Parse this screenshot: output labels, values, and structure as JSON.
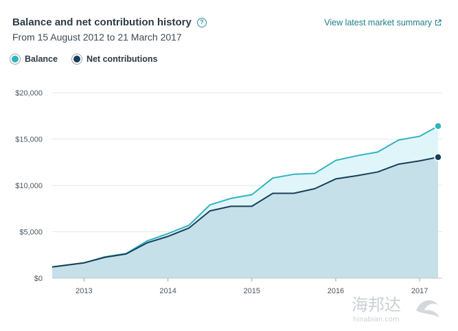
{
  "header": {
    "title": "Balance and net contribution history",
    "subtitle": "From 15 August 2012 to 21 March 2017",
    "summary_link": "View latest market summary"
  },
  "legend": {
    "balance_label": "Balance",
    "net_label": "Net contributions"
  },
  "colors": {
    "balance": "#2fb3bd",
    "net": "#173f58",
    "balance_fill": "#e0f5fa",
    "net_fill": "#c6e0ea",
    "grid": "#e3e6e8",
    "link": "#1c7e87"
  },
  "watermark": {
    "main": "海邦达",
    "sub": "hinabian.com"
  },
  "chart_data": {
    "type": "area",
    "x_ticks": [
      "2013",
      "2014",
      "2015",
      "2016",
      "2017"
    ],
    "y_ticks": [
      "$0",
      "$5,000",
      "$10,000",
      "$15,000",
      "$20,000"
    ],
    "ylim": [
      0,
      20000
    ],
    "xlim": [
      2012.62,
      2017.22
    ],
    "grid": true,
    "legend_position": "top-left",
    "series": [
      {
        "name": "Balance",
        "x": [
          2012.62,
          2013.0,
          2013.25,
          2013.5,
          2013.75,
          2014.0,
          2014.25,
          2014.5,
          2014.75,
          2015.0,
          2015.25,
          2015.5,
          2015.75,
          2016.0,
          2016.25,
          2016.5,
          2016.75,
          2017.0,
          2017.22
        ],
        "values": [
          1200,
          1650,
          2300,
          2650,
          4000,
          4800,
          5700,
          7900,
          8600,
          9000,
          10800,
          11200,
          11300,
          12700,
          13200,
          13600,
          14900,
          15300,
          16400
        ]
      },
      {
        "name": "Net contributions",
        "x": [
          2012.62,
          2013.0,
          2013.25,
          2013.5,
          2013.75,
          2014.0,
          2014.25,
          2014.5,
          2014.75,
          2015.0,
          2015.25,
          2015.5,
          2015.75,
          2016.0,
          2016.25,
          2016.5,
          2016.75,
          2017.0,
          2017.22
        ],
        "values": [
          1200,
          1650,
          2250,
          2600,
          3800,
          4500,
          5400,
          7250,
          7750,
          7750,
          9150,
          9150,
          9650,
          10700,
          11050,
          11450,
          12300,
          12650,
          13050
        ]
      }
    ]
  }
}
